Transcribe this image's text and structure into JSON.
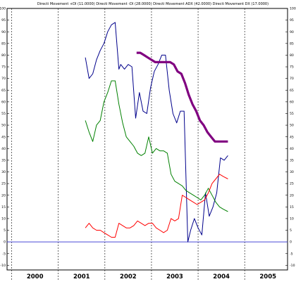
{
  "chart_data": {
    "type": "line",
    "title": "Directi Movement +DI (11.0000) Directi Movement -DI (28.0000) Directi Movement ADX (42.0000) Directi Movement DX (17.0000)",
    "xlabel": "",
    "ylabel": "",
    "x_ticks": [
      "2000",
      "2001",
      "2002",
      "2003",
      "2004",
      "2005"
    ],
    "y_ticks": [
      100,
      95,
      90,
      85,
      80,
      75,
      70,
      65,
      60,
      55,
      50,
      45,
      40,
      35,
      30,
      25,
      20,
      15,
      10,
      5,
      0,
      -5,
      -10
    ],
    "ylim": [
      -12,
      100
    ],
    "xlim": [
      1999.9,
      2005.92
    ],
    "grid": false,
    "reference_line": 0,
    "colors": {
      "blue": "#00008b",
      "green": "#008000",
      "red": "#ff0000",
      "purple": "#800080",
      "reference": "#4a4ad6"
    },
    "series": [
      {
        "color": "#00008b",
        "x": [
          2001.58,
          2001.66,
          2001.74,
          2001.82,
          2001.9,
          2001.98,
          2002.06,
          2002.14,
          2002.22,
          2002.3,
          2002.34,
          2002.42,
          2002.5,
          2002.58,
          2002.66,
          2002.74,
          2002.82,
          2002.9,
          2002.98,
          2003.06,
          2003.14,
          2003.22,
          2003.3,
          2003.38,
          2003.46,
          2003.54,
          2003.62,
          2003.7,
          2003.78,
          2003.84,
          2003.92,
          2004.0,
          2004.08,
          2004.16,
          2004.24,
          2004.32,
          2004.4,
          2004.48,
          2004.56,
          2004.64
        ],
        "values": [
          79,
          70,
          72,
          78,
          82,
          85,
          90,
          93,
          94,
          74,
          76,
          74,
          76,
          75,
          53,
          64,
          56,
          55,
          66,
          73,
          76,
          80,
          80,
          65,
          55,
          51,
          56,
          56,
          0,
          5,
          10,
          6,
          3,
          21,
          11,
          15,
          21,
          36,
          35,
          37
        ]
      },
      {
        "color": "#008000",
        "x": [
          2001.58,
          2001.66,
          2001.74,
          2001.82,
          2001.9,
          2001.98,
          2002.06,
          2002.14,
          2002.22,
          2002.3,
          2002.38,
          2002.46,
          2002.54,
          2002.62,
          2002.7,
          2002.78,
          2002.86,
          2002.94,
          2003.02,
          2003.1,
          2003.18,
          2003.26,
          2003.34,
          2003.42,
          2003.5,
          2003.58,
          2003.66,
          2003.74,
          2003.82,
          2003.9,
          2003.98,
          2004.06,
          2004.14,
          2004.22,
          2004.3,
          2004.38,
          2004.46,
          2004.54,
          2004.64
        ],
        "values": [
          52,
          47,
          43,
          50,
          52,
          60,
          64,
          69,
          69,
          59,
          51,
          45,
          43,
          41,
          38,
          37,
          38,
          45,
          38,
          40,
          39,
          39,
          38,
          29,
          26,
          25,
          24,
          22,
          21,
          20,
          19,
          18,
          20,
          23,
          20,
          17,
          15,
          14,
          13
        ]
      },
      {
        "color": "#ff0000",
        "x": [
          2001.58,
          2001.66,
          2001.74,
          2001.82,
          2001.9,
          2001.98,
          2002.06,
          2002.14,
          2002.22,
          2002.3,
          2002.38,
          2002.46,
          2002.54,
          2002.62,
          2002.7,
          2002.78,
          2002.86,
          2002.94,
          2003.02,
          2003.1,
          2003.18,
          2003.26,
          2003.34,
          2003.42,
          2003.5,
          2003.58,
          2003.66,
          2003.74,
          2003.82,
          2003.9,
          2003.98,
          2004.06,
          2004.14,
          2004.22,
          2004.3,
          2004.38,
          2004.46,
          2004.54,
          2004.64
        ],
        "values": [
          6,
          8,
          6,
          5,
          5,
          4,
          3,
          2,
          2,
          8,
          7,
          6,
          6,
          7,
          9,
          8,
          7,
          8,
          8,
          6,
          5,
          4,
          5,
          10,
          9,
          10,
          20,
          19,
          18,
          17,
          16,
          17,
          18,
          21,
          25,
          27,
          29,
          28,
          27
        ]
      },
      {
        "color": "#800080",
        "x": [
          2002.68,
          2002.76,
          2002.84,
          2002.92,
          2003.0,
          2003.08,
          2003.16,
          2003.24,
          2003.32,
          2003.4,
          2003.48,
          2003.56,
          2003.64,
          2003.72,
          2003.8,
          2003.88,
          2003.96,
          2004.04,
          2004.12,
          2004.2,
          2004.28,
          2004.36,
          2004.44,
          2004.52,
          2004.64
        ],
        "values": [
          81,
          81,
          80,
          79,
          78,
          77,
          77,
          77,
          77,
          77,
          76,
          73,
          72,
          68,
          63,
          59,
          56,
          52,
          50,
          47,
          45,
          43,
          43,
          43,
          43
        ]
      }
    ]
  }
}
